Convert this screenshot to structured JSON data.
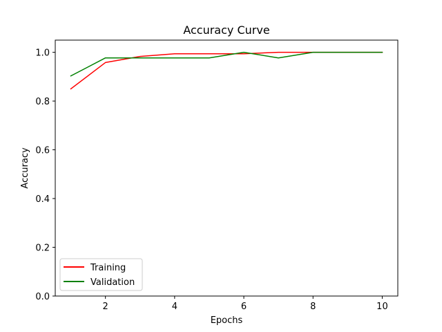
{
  "chart_data": {
    "type": "line",
    "title": "Accuracy Curve",
    "xlabel": "Epochs",
    "ylabel": "Accuracy",
    "x": [
      1,
      2,
      3,
      4,
      5,
      6,
      7,
      8,
      9,
      10
    ],
    "xlim": [
      0.55,
      10.45
    ],
    "ylim": [
      0.0,
      1.05
    ],
    "xticks": [
      2,
      4,
      6,
      8,
      10
    ],
    "yticks": [
      0.0,
      0.2,
      0.4,
      0.6,
      0.8,
      1.0
    ],
    "xtick_labels": [
      "2",
      "4",
      "6",
      "8",
      "10"
    ],
    "ytick_labels": [
      "0.0",
      "0.2",
      "0.4",
      "0.6",
      "0.8",
      "1.0"
    ],
    "grid": false,
    "legend_position": "lower-left",
    "series": [
      {
        "name": "Training",
        "color": "#ff0000",
        "values": [
          0.85,
          0.958,
          0.983,
          0.994,
          0.994,
          0.994,
          1.0,
          1.0,
          1.0,
          1.0
        ]
      },
      {
        "name": "Validation",
        "color": "#008000",
        "values": [
          0.903,
          0.977,
          0.977,
          0.977,
          0.977,
          1.0,
          0.977,
          1.0,
          1.0,
          1.0
        ]
      }
    ]
  }
}
